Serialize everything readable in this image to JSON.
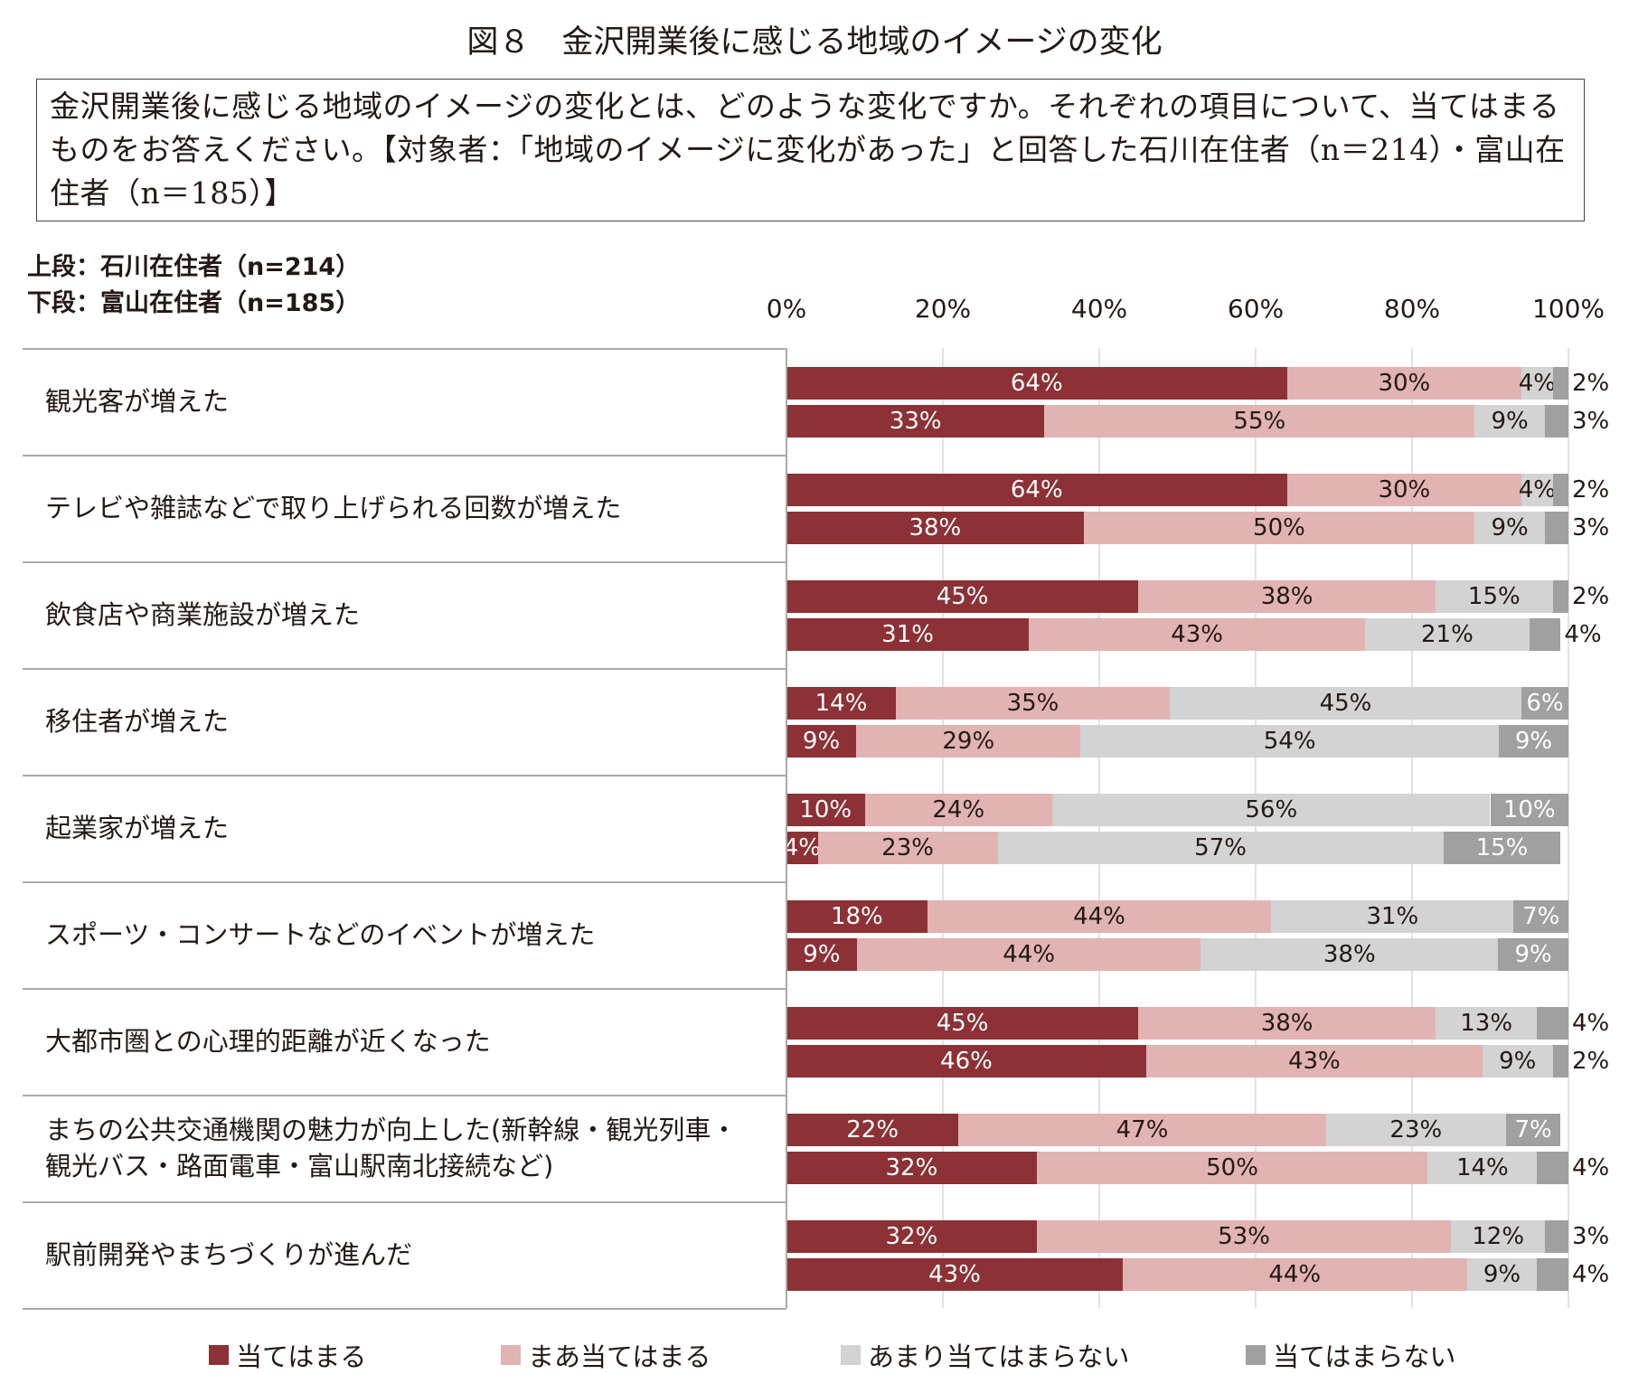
{
  "title": "図８　金沢開業後に感じる地域のイメージの変化",
  "question": "金沢開業後に感じる地域のイメージの変化とは、どのような変化ですか。それぞれの項目について、当てはまるものをお答えください。【対象者：「地域のイメージに変化があった」と回答した石川在住者（n＝214）・富山在住者（n＝185）】",
  "group_labels": {
    "upper": "上段：石川在住者（n=214）",
    "lower": "下段：富山在住者（n=185）"
  },
  "colors": {
    "agree": "#8c3135",
    "somewhat": "#e1b3b3",
    "not_much": "#d3d3d3",
    "not": "#a0a0a0"
  },
  "chart_data": {
    "type": "bar",
    "stacked": true,
    "orientation": "horizontal",
    "title": "図８　金沢開業後に感じる地域のイメージの変化",
    "xlim": [
      0,
      100
    ],
    "ticks": [
      "0%",
      "20%",
      "40%",
      "60%",
      "80%",
      "100%"
    ],
    "legend_position": "bottom",
    "legend": [
      "当てはまる",
      "まあ当てはまる",
      "あまり当てはまらない",
      "当てはまらない"
    ],
    "categories": [
      {
        "label": "観光客が増えた",
        "ishikawa": [
          64,
          30,
          4,
          2
        ],
        "toyama": [
          33,
          55,
          9,
          3
        ]
      },
      {
        "label": "テレビや雑誌などで取り上げられる回数が増えた",
        "ishikawa": [
          64,
          30,
          4,
          2
        ],
        "toyama": [
          38,
          50,
          9,
          3
        ]
      },
      {
        "label": "飲食店や商業施設が増えた",
        "ishikawa": [
          45,
          38,
          15,
          2
        ],
        "toyama": [
          31,
          43,
          21,
          4
        ]
      },
      {
        "label": "移住者が増えた",
        "ishikawa": [
          14,
          35,
          45,
          6
        ],
        "toyama": [
          9,
          29,
          54,
          9
        ]
      },
      {
        "label": "起業家が増えた",
        "ishikawa": [
          10,
          24,
          56,
          10
        ],
        "toyama": [
          4,
          23,
          57,
          15
        ]
      },
      {
        "label": "スポーツ・コンサートなどのイベントが増えた",
        "ishikawa": [
          18,
          44,
          31,
          7
        ],
        "toyama": [
          9,
          44,
          38,
          9
        ]
      },
      {
        "label": "大都市圏との心理的距離が近くなった",
        "ishikawa": [
          45,
          38,
          13,
          4
        ],
        "toyama": [
          46,
          43,
          9,
          2
        ]
      },
      {
        "label": "まちの公共交通機関の魅力が向上した(新幹線・観光列車・観光バス・路面電車・富山駅南北接続など)",
        "ishikawa": [
          22,
          47,
          23,
          7
        ],
        "toyama": [
          32,
          50,
          14,
          4
        ]
      },
      {
        "label": "駅前開発やまちづくりが進んだ",
        "ishikawa": [
          32,
          53,
          12,
          3
        ],
        "toyama": [
          43,
          44,
          9,
          4
        ]
      }
    ]
  }
}
